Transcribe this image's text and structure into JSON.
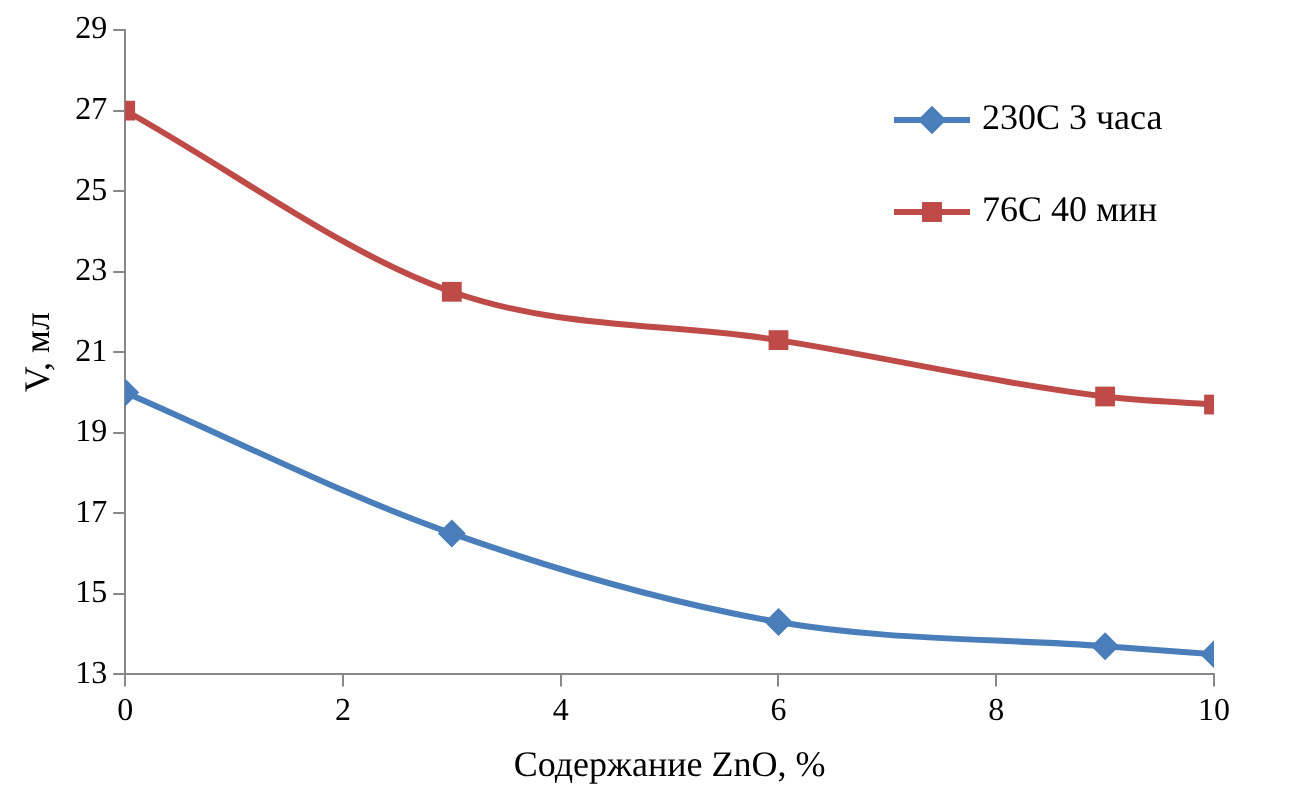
{
  "chart_data": {
    "type": "line",
    "xlabel": "Содержание ZnO, %",
    "ylabel": "V, мл",
    "xlim": [
      0,
      10
    ],
    "xticks": [
      0,
      2,
      4,
      6,
      8,
      10
    ],
    "ylim": [
      13,
      29
    ],
    "yticks": [
      13,
      15,
      17,
      19,
      21,
      23,
      25,
      27,
      29
    ],
    "grid": false,
    "legend": "top right",
    "line_style": "solid",
    "series": [
      {
        "name": "230С 3 часа",
        "color": "#4a7ebb",
        "marker": "diamond",
        "x": [
          0,
          3,
          6,
          9,
          10
        ],
        "values": [
          20.0,
          16.5,
          14.3,
          13.7,
          13.5
        ]
      },
      {
        "name": "76С 40 мин",
        "color": "#be4b48",
        "marker": "square",
        "x": [
          0,
          3,
          6,
          9,
          10
        ],
        "values": [
          27.0,
          22.5,
          21.3,
          19.9,
          19.7
        ]
      }
    ]
  }
}
